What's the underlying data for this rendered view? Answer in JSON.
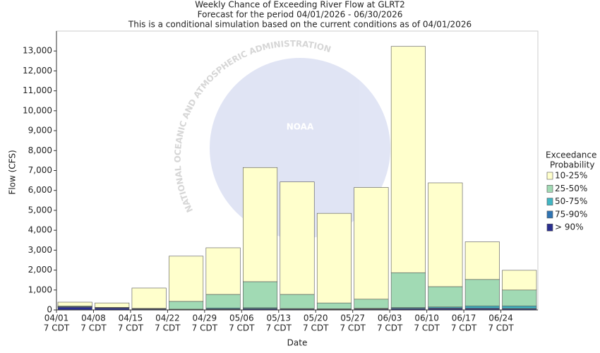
{
  "chart_data": {
    "type": "stacked_bar",
    "title": "Weekly Chance of Exceeding River Flow at GLRT2",
    "subtitle": [
      "Forecast for the period 04/01/2026 - 06/30/2026",
      "This is a conditional simulation based on the current conditions as of 04/01/2026"
    ],
    "xlabel": "Date",
    "ylabel": "Flow (CFS)",
    "watermark": {
      "logo": "NOAA",
      "ring": "NATIONAL OCEANIC AND ATMOSPHERIC ADMINISTRATION"
    },
    "legend_title": [
      "Exceedance",
      "Probability"
    ],
    "legend_position": "right",
    "categories": [
      [
        "04/01",
        "7 CDT"
      ],
      [
        "04/08",
        "7 CDT"
      ],
      [
        "04/15",
        "7 CDT"
      ],
      [
        "04/22",
        "7 CDT"
      ],
      [
        "04/29",
        "7 CDT"
      ],
      [
        "05/06",
        "7 CDT"
      ],
      [
        "05/13",
        "7 CDT"
      ],
      [
        "05/20",
        "7 CDT"
      ],
      [
        "05/27",
        "7 CDT"
      ],
      [
        "06/03",
        "7 CDT"
      ],
      [
        "06/10",
        "7 CDT"
      ],
      [
        "06/17",
        "7 CDT"
      ],
      [
        "06/24",
        "7 CDT"
      ]
    ],
    "series": [
      {
        "name": "> 90%",
        "color": "#2a2f8f",
        "values": [
          140,
          90,
          40,
          20,
          40,
          50,
          40,
          30,
          40,
          60,
          70,
          60,
          50
        ]
      },
      {
        "name": "75-90%",
        "color": "#2f74b3",
        "values": [
          10,
          10,
          10,
          10,
          20,
          20,
          10,
          10,
          20,
          20,
          30,
          40,
          30
        ]
      },
      {
        "name": "50-75%",
        "color": "#41b6c4",
        "values": [
          10,
          10,
          10,
          10,
          40,
          40,
          20,
          20,
          20,
          40,
          50,
          100,
          120
        ]
      },
      {
        "name": "25-50%",
        "color": "#a1dab4",
        "values": [
          40,
          20,
          20,
          390,
          680,
          1310,
          710,
          290,
          460,
          1750,
          1020,
          1330,
          800
        ]
      },
      {
        "name": "10-25%",
        "color": "#ffffcc",
        "values": [
          190,
          220,
          1020,
          2270,
          2340,
          5730,
          5650,
          4500,
          5610,
          11360,
          5210,
          1890,
          990
        ]
      }
    ],
    "ylim": [
      0,
      14000
    ],
    "yticks": [
      0,
      {
        "value": 1000,
        "label": "1,000"
      },
      {
        "value": 2000,
        "label": "2,000"
      },
      {
        "value": 3000,
        "label": "3,000"
      },
      {
        "value": 4000,
        "label": "4,000"
      },
      {
        "value": 5000,
        "label": "5,000"
      },
      {
        "value": 6000,
        "label": "6,000"
      },
      {
        "value": 7000,
        "label": "7,000"
      },
      {
        "value": 8000,
        "label": "8,000"
      },
      {
        "value": 9000,
        "label": "9,000"
      },
      {
        "value": 10000,
        "label": "10,000"
      },
      {
        "value": 11000,
        "label": "11,000"
      },
      {
        "value": 12000,
        "label": "12,000"
      },
      {
        "value": 13000,
        "label": "13,000"
      }
    ],
    "grid": false
  }
}
